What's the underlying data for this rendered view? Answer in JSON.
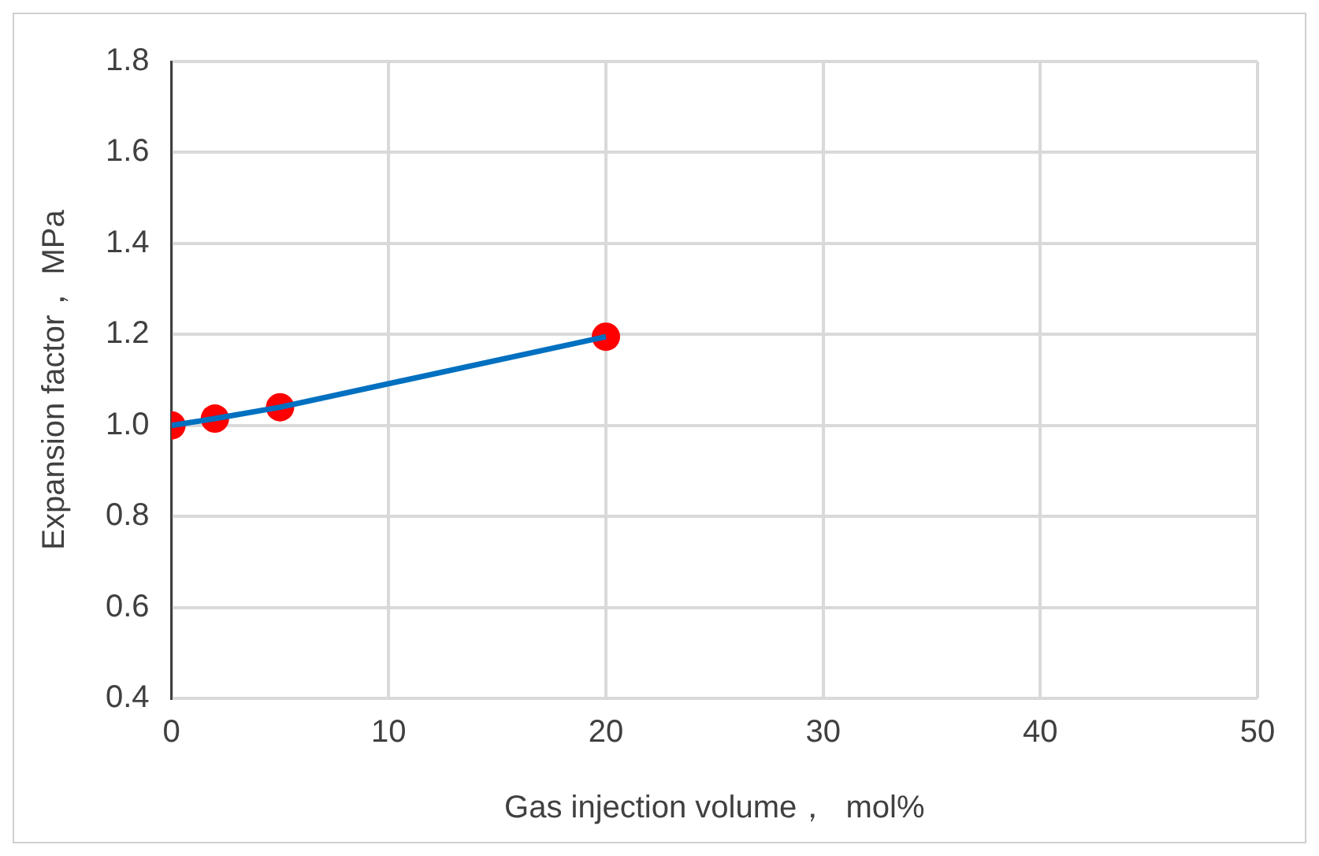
{
  "chart_data": {
    "type": "line",
    "xlabel": "Gas injection volume，  mol%",
    "ylabel": "Expansion factor， MPa",
    "x": [
      0,
      2,
      5,
      20
    ],
    "series": [
      {
        "type": "line",
        "color": "#0070c0",
        "marker": "none",
        "values": [
          1.0,
          1.015,
          1.04,
          1.195
        ]
      },
      {
        "type": "scatter",
        "color": "#ff0000",
        "marker": "circle",
        "values": [
          1.0,
          1.015,
          1.04,
          1.195
        ]
      }
    ],
    "xlim": [
      0,
      50
    ],
    "xticks": [
      0,
      10,
      20,
      30,
      40,
      50
    ],
    "ylim": [
      0.4,
      1.8
    ],
    "yticks": [
      0.4,
      0.6,
      0.8,
      {
        "value": 1,
        "label": "1.0"
      },
      1.2,
      1.4,
      1.6,
      1.8
    ],
    "grid": true,
    "legend": false
  }
}
